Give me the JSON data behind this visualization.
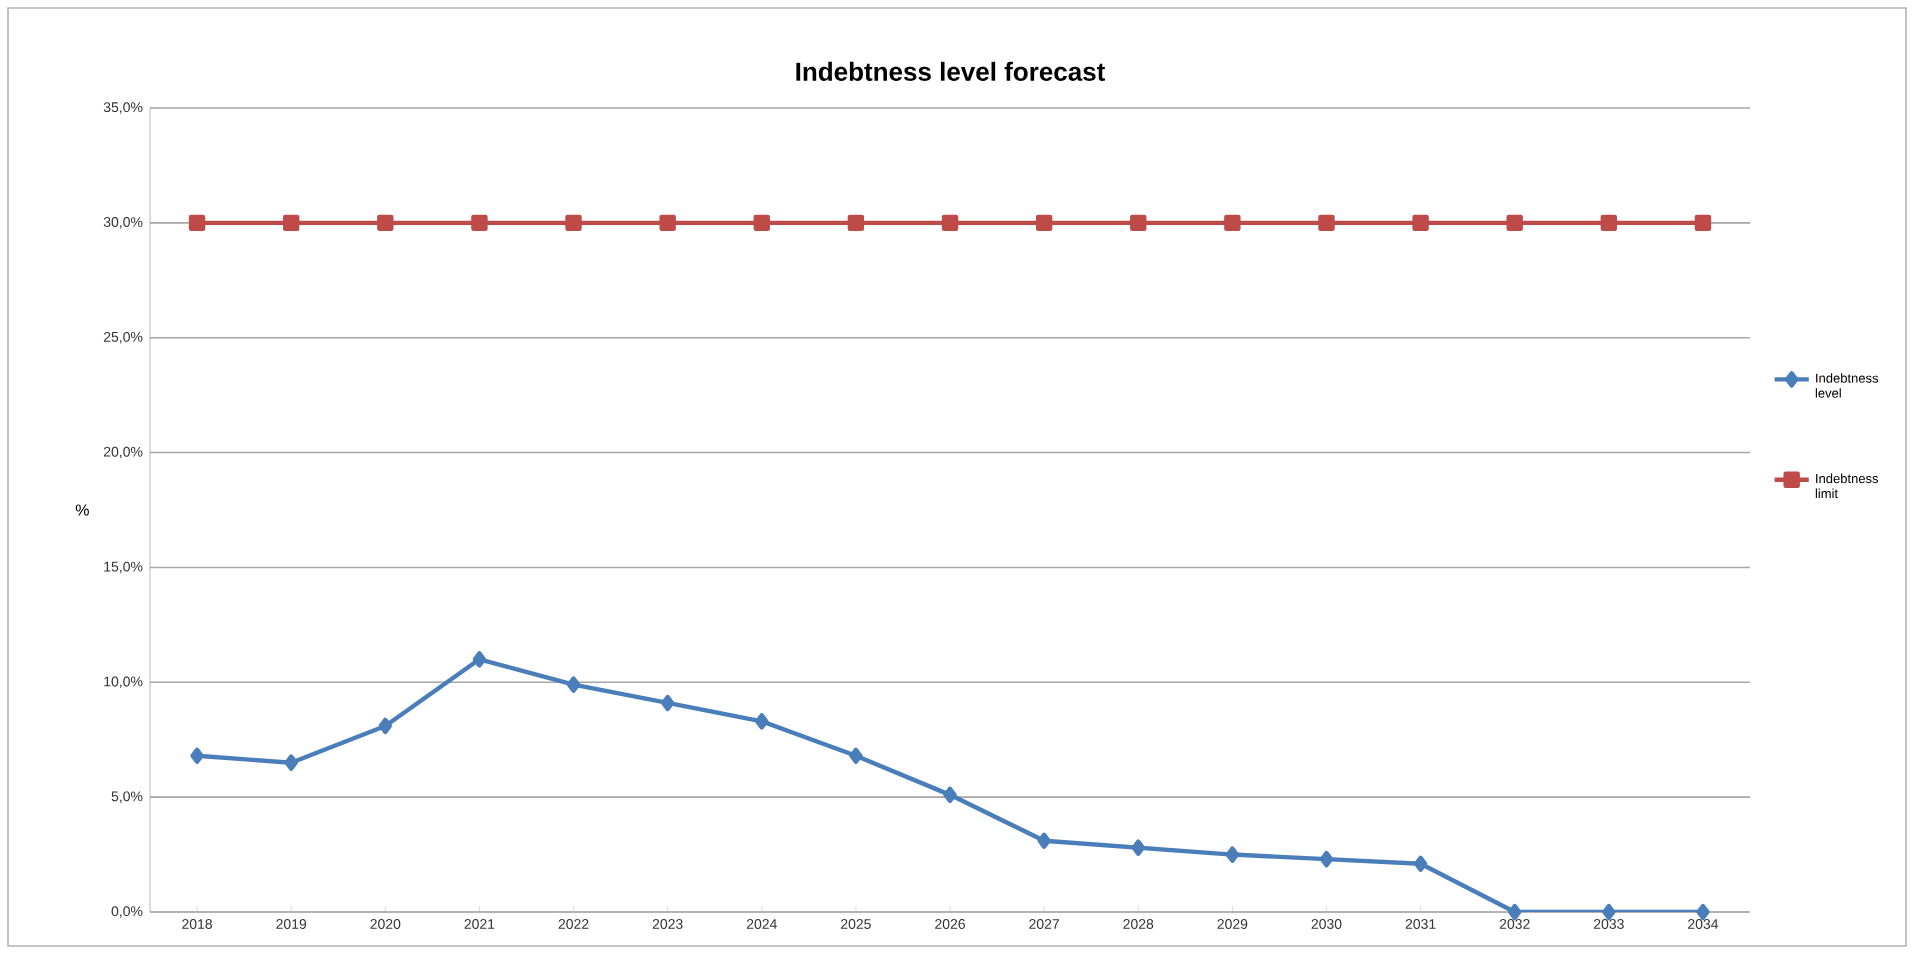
{
  "chart_data": {
    "type": "line",
    "title": "Indebtness level forecast",
    "ylabel": "%",
    "categories": [
      "2018",
      "2019",
      "2020",
      "2021",
      "2022",
      "2023",
      "2024",
      "2025",
      "2026",
      "2027",
      "2028",
      "2029",
      "2030",
      "2031",
      "2032",
      "2033",
      "2034"
    ],
    "series": [
      {
        "name": "Indebtness level",
        "color": "#4a7ebb",
        "marker": "diamond",
        "values": [
          6.8,
          6.5,
          8.1,
          11.0,
          9.9,
          9.1,
          8.3,
          6.8,
          5.1,
          3.1,
          2.8,
          2.5,
          2.3,
          2.1,
          0,
          0,
          0
        ]
      },
      {
        "name": "Indebtness limit",
        "color": "#be4b48",
        "marker": "square",
        "values": [
          30,
          30,
          30,
          30,
          30,
          30,
          30,
          30,
          30,
          30,
          30,
          30,
          30,
          30,
          30,
          30,
          30
        ]
      }
    ],
    "ylim": [
      0,
      35
    ],
    "yticks": [
      {
        "value": 0,
        "label": "0,0%"
      },
      {
        "value": 5,
        "label": "5,0%"
      },
      {
        "value": 10,
        "label": "10,0%"
      },
      {
        "value": 15,
        "label": "15,0%"
      },
      {
        "value": 20,
        "label": "20,0%"
      },
      {
        "value": 25,
        "label": "25,0%"
      },
      {
        "value": 30,
        "label": "30,0%"
      },
      {
        "value": 35,
        "label": "35,0%"
      }
    ],
    "grid": "y",
    "legend": "right",
    "line_style": "solid"
  }
}
